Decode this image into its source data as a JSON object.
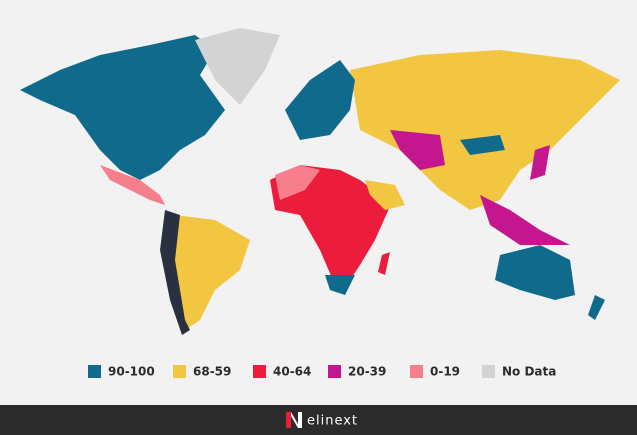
{
  "legend": [
    {
      "label": "90-100",
      "color": "#0f6a8b"
    },
    {
      "label": "68-59",
      "color": "#f2c641"
    },
    {
      "label": "40-64",
      "color": "#ec1c3c"
    },
    {
      "label": "20-39",
      "color": "#c4178f"
    },
    {
      "label": "0-19",
      "color": "#f77f8d"
    },
    {
      "label": "No Data",
      "color": "#d3d3d3"
    }
  ],
  "footer": {
    "brand": "elinext"
  }
}
